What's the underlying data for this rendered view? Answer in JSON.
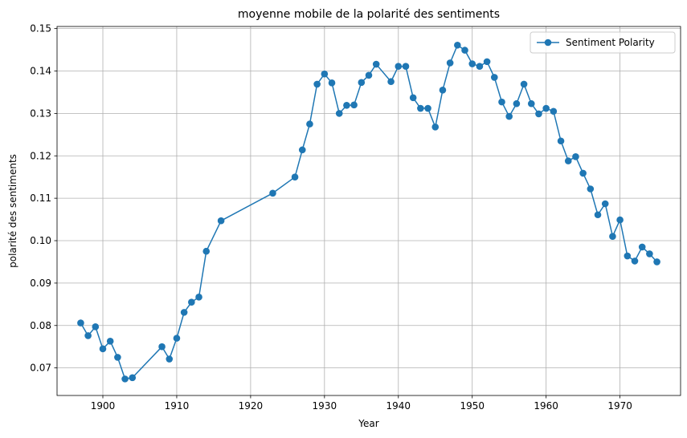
{
  "chart_data": {
    "type": "line",
    "title": "moyenne mobile de la polarité des sentiments",
    "xlabel": "Year",
    "ylabel": "polarité des sentiments",
    "xlim": [
      1893.8,
      1978.2
    ],
    "ylim": [
      0.0635,
      0.1505
    ],
    "xticks": [
      1900,
      1910,
      1920,
      1930,
      1940,
      1950,
      1960,
      1970
    ],
    "yticks": [
      0.07,
      0.08,
      0.09,
      0.1,
      0.11,
      0.12,
      0.13,
      0.14,
      0.15
    ],
    "ytick_labels": [
      "0.07",
      "0.08",
      "0.09",
      "0.10",
      "0.11",
      "0.12",
      "0.13",
      "0.14",
      "0.15"
    ],
    "grid": true,
    "legend_position": "top-right",
    "series": [
      {
        "name": "Sentiment Polarity",
        "color": "#1f77b4",
        "marker": "circle",
        "x": [
          1897,
          1898,
          1899,
          1900,
          1901,
          1902,
          1903,
          1904,
          1908,
          1909,
          1910,
          1911,
          1912,
          1913,
          1914,
          1916,
          1923,
          1926,
          1927,
          1928,
          1929,
          1930,
          1931,
          1932,
          1933,
          1934,
          1935,
          1936,
          1937,
          1939,
          1940,
          1941,
          1942,
          1943,
          1944,
          1945,
          1946,
          1947,
          1948,
          1949,
          1950,
          1951,
          1952,
          1953,
          1954,
          1955,
          1956,
          1957,
          1958,
          1959,
          1960,
          1961,
          1962,
          1963,
          1964,
          1965,
          1966,
          1967,
          1968,
          1969,
          1970,
          1971,
          1972,
          1973,
          1974,
          1975
        ],
        "y": [
          0.0806,
          0.0776,
          0.0797,
          0.0745,
          0.0763,
          0.0725,
          0.0674,
          0.0677,
          0.075,
          0.0721,
          0.077,
          0.0831,
          0.0855,
          0.0867,
          0.0975,
          0.1047,
          0.1112,
          0.115,
          0.1214,
          0.1275,
          0.1369,
          0.1393,
          0.1372,
          0.13,
          0.1319,
          0.132,
          0.1373,
          0.139,
          0.1416,
          0.1375,
          0.1411,
          0.1411,
          0.1337,
          0.1312,
          0.1312,
          0.1268,
          0.1355,
          0.1419,
          0.1461,
          0.1449,
          0.1417,
          0.1411,
          0.1422,
          0.1385,
          0.1327,
          0.1293,
          0.1323,
          0.1369,
          0.1323,
          0.1299,
          0.1312,
          0.1305,
          0.1235,
          0.1188,
          0.1198,
          0.1159,
          0.1122,
          0.1061,
          0.1087,
          0.101,
          0.1049,
          0.0964,
          0.0952,
          0.0985,
          0.0969,
          0.095
        ]
      }
    ]
  }
}
